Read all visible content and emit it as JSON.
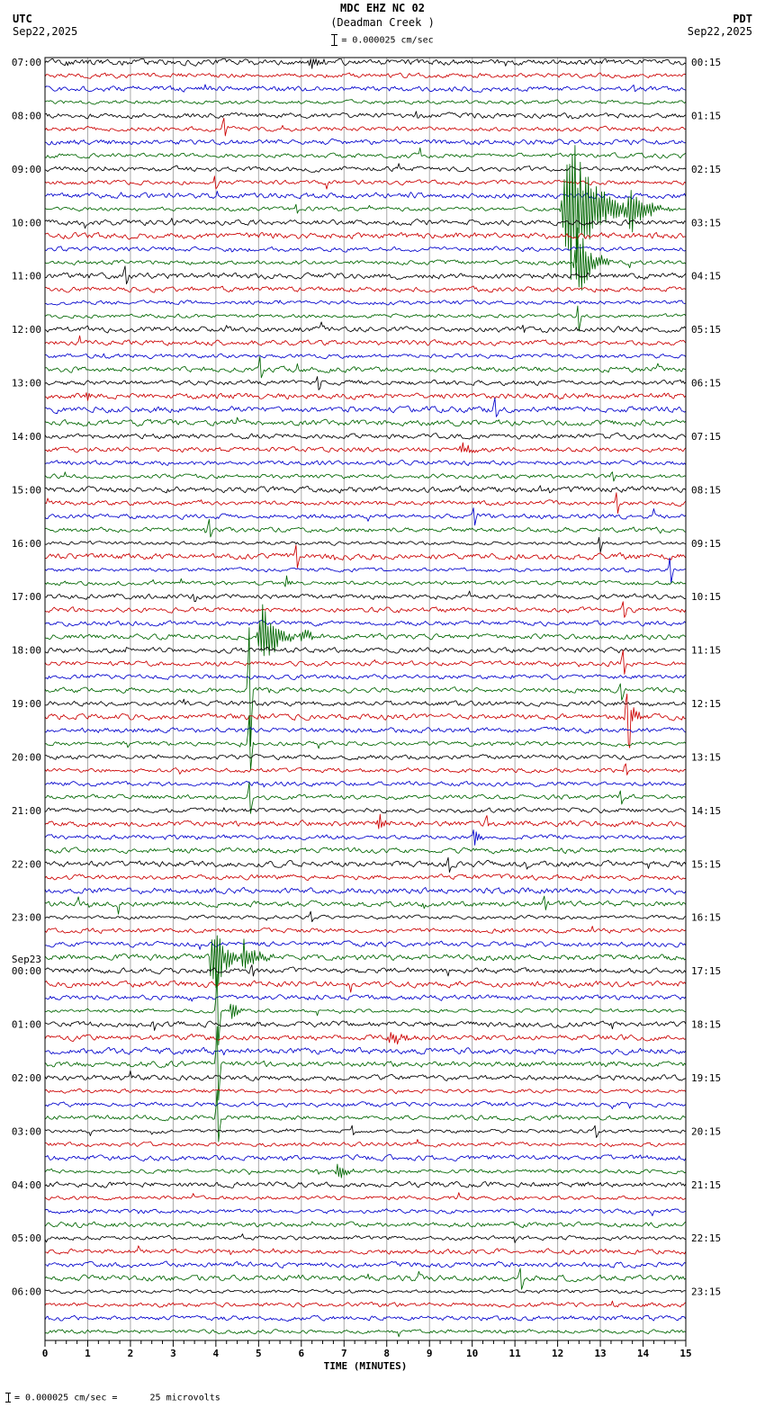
{
  "header": {
    "title": "MDC EHZ NC 02",
    "subtitle": "(Deadman Creek )",
    "scale_text": "= 0.000025 cm/sec",
    "left_tz": "UTC",
    "left_date": "Sep22,2025",
    "right_tz": "PDT",
    "right_date": "Sep22,2025"
  },
  "footer": {
    "note": "= 0.000025 cm/sec =      25 microvolts"
  },
  "chart_data": {
    "type": "line",
    "kind": "helicorder-seismogram",
    "station": "MDC EHZ NC 02",
    "station_name": "Deadman Creek",
    "xlabel": "TIME (MINUTES)",
    "x_min": 0,
    "x_max": 15,
    "x_major_tick_step": 1,
    "x_minor_tick_step": 0.25,
    "rows": 96,
    "minutes_per_row": 15,
    "trace_color_cycle": [
      "#000000",
      "#cc0000",
      "#0000cc",
      "#006600"
    ],
    "grid_color": "#aaaaaa",
    "x_tick_labels": [
      "0",
      "1",
      "2",
      "3",
      "4",
      "5",
      "6",
      "7",
      "8",
      "9",
      "10",
      "11",
      "12",
      "13",
      "14",
      "15"
    ],
    "left_time_labels": [
      {
        "row": 0,
        "text": "07:00"
      },
      {
        "row": 4,
        "text": "08:00"
      },
      {
        "row": 8,
        "text": "09:00"
      },
      {
        "row": 12,
        "text": "10:00"
      },
      {
        "row": 16,
        "text": "11:00"
      },
      {
        "row": 20,
        "text": "12:00"
      },
      {
        "row": 24,
        "text": "13:00"
      },
      {
        "row": 28,
        "text": "14:00"
      },
      {
        "row": 32,
        "text": "15:00"
      },
      {
        "row": 36,
        "text": "16:00"
      },
      {
        "row": 40,
        "text": "17:00"
      },
      {
        "row": 44,
        "text": "18:00"
      },
      {
        "row": 48,
        "text": "19:00"
      },
      {
        "row": 52,
        "text": "20:00"
      },
      {
        "row": 56,
        "text": "21:00"
      },
      {
        "row": 60,
        "text": "22:00"
      },
      {
        "row": 64,
        "text": "23:00"
      },
      {
        "row": 68,
        "text": "00:00",
        "date_above": "Sep23"
      },
      {
        "row": 72,
        "text": "01:00"
      },
      {
        "row": 76,
        "text": "02:00"
      },
      {
        "row": 80,
        "text": "03:00"
      },
      {
        "row": 84,
        "text": "04:00"
      },
      {
        "row": 88,
        "text": "05:00"
      },
      {
        "row": 92,
        "text": "06:00"
      }
    ],
    "right_time_labels": [
      {
        "row": 0,
        "text": "00:15"
      },
      {
        "row": 4,
        "text": "01:15"
      },
      {
        "row": 8,
        "text": "02:15"
      },
      {
        "row": 12,
        "text": "03:15"
      },
      {
        "row": 16,
        "text": "04:15"
      },
      {
        "row": 20,
        "text": "05:15"
      },
      {
        "row": 24,
        "text": "06:15"
      },
      {
        "row": 28,
        "text": "07:15"
      },
      {
        "row": 32,
        "text": "08:15"
      },
      {
        "row": 36,
        "text": "09:15"
      },
      {
        "row": 40,
        "text": "10:15"
      },
      {
        "row": 44,
        "text": "11:15"
      },
      {
        "row": 48,
        "text": "12:15"
      },
      {
        "row": 52,
        "text": "13:15"
      },
      {
        "row": 56,
        "text": "14:15"
      },
      {
        "row": 60,
        "text": "15:15"
      },
      {
        "row": 64,
        "text": "16:15"
      },
      {
        "row": 68,
        "text": "17:15"
      },
      {
        "row": 72,
        "text": "18:15"
      },
      {
        "row": 76,
        "text": "19:15"
      },
      {
        "row": 80,
        "text": "20:15"
      },
      {
        "row": 84,
        "text": "21:15"
      },
      {
        "row": 88,
        "text": "22:15"
      },
      {
        "row": 92,
        "text": "23:15"
      }
    ],
    "events": [
      {
        "row": 0,
        "t": 6.15,
        "kind": "burst",
        "amp": 14,
        "dur": 0.45
      },
      {
        "row": 2,
        "t": 13.8,
        "kind": "spike",
        "amp": 5
      },
      {
        "row": 4,
        "t": 8.7,
        "kind": "spike",
        "amp": 5
      },
      {
        "row": 5,
        "t": 4.2,
        "kind": "spike",
        "amp": 13
      },
      {
        "row": 9,
        "t": 4.0,
        "kind": "spike",
        "amp": 11
      },
      {
        "row": 11,
        "t": 5.9,
        "kind": "spike",
        "amp": 7
      },
      {
        "row": 11,
        "t": 12.05,
        "kind": "burst",
        "amp": 92,
        "dur": 1.7
      },
      {
        "row": 11,
        "t": 13.6,
        "kind": "burst",
        "amp": 26,
        "dur": 1.1
      },
      {
        "row": 12,
        "t": 3.0,
        "kind": "spike",
        "amp": 5
      },
      {
        "row": 15,
        "t": 12.35,
        "kind": "burst",
        "amp": 48,
        "dur": 0.9
      },
      {
        "row": 16,
        "t": 1.9,
        "kind": "spike",
        "amp": 16
      },
      {
        "row": 19,
        "t": 12.5,
        "kind": "spike",
        "amp": 20
      },
      {
        "row": 20,
        "t": 11.2,
        "kind": "spike",
        "amp": 8
      },
      {
        "row": 23,
        "t": 5.05,
        "kind": "spike",
        "amp": 18
      },
      {
        "row": 24,
        "t": 6.4,
        "kind": "spike",
        "amp": 12
      },
      {
        "row": 25,
        "t": 0.95,
        "kind": "burst",
        "amp": 8,
        "dur": 0.25
      },
      {
        "row": 26,
        "t": 10.55,
        "kind": "spike",
        "amp": 13
      },
      {
        "row": 29,
        "t": 9.7,
        "kind": "burst",
        "amp": 9,
        "dur": 0.5
      },
      {
        "row": 31,
        "t": 13.3,
        "kind": "spike",
        "amp": 8
      },
      {
        "row": 32,
        "t": 11.8,
        "kind": "spike",
        "amp": 6
      },
      {
        "row": 33,
        "t": 13.4,
        "kind": "spike",
        "amp": 16
      },
      {
        "row": 34,
        "t": 10.05,
        "kind": "spike",
        "amp": 16
      },
      {
        "row": 35,
        "t": 3.85,
        "kind": "spike",
        "amp": 16
      },
      {
        "row": 36,
        "t": 13.0,
        "kind": "spike",
        "amp": 13
      },
      {
        "row": 37,
        "t": 5.9,
        "kind": "spike",
        "amp": 19
      },
      {
        "row": 38,
        "t": 14.65,
        "kind": "spike",
        "amp": 22
      },
      {
        "row": 39,
        "t": 5.6,
        "kind": "burst",
        "amp": 10,
        "dur": 0.3
      },
      {
        "row": 40,
        "t": 3.5,
        "kind": "spike",
        "amp": 6
      },
      {
        "row": 41,
        "t": 13.55,
        "kind": "spike",
        "amp": 12
      },
      {
        "row": 43,
        "t": 4.95,
        "kind": "burst",
        "amp": 46,
        "dur": 0.9
      },
      {
        "row": 43,
        "t": 5.95,
        "kind": "burst",
        "amp": 14,
        "dur": 0.5
      },
      {
        "row": 45,
        "t": 13.55,
        "kind": "spike",
        "amp": 18
      },
      {
        "row": 47,
        "t": 4.8,
        "kind": "spike",
        "amp": 95
      },
      {
        "row": 47,
        "t": 13.5,
        "kind": "spike",
        "amp": 14
      },
      {
        "row": 49,
        "t": 13.55,
        "kind": "burst",
        "amp": 26,
        "dur": 0.55
      },
      {
        "row": 49,
        "t": 13.65,
        "kind": "spike",
        "amp": 58
      },
      {
        "row": 51,
        "t": 4.8,
        "kind": "spike",
        "amp": 46
      },
      {
        "row": 53,
        "t": 13.6,
        "kind": "spike",
        "amp": 10
      },
      {
        "row": 55,
        "t": 4.8,
        "kind": "spike",
        "amp": 24
      },
      {
        "row": 55,
        "t": 13.5,
        "kind": "spike",
        "amp": 12
      },
      {
        "row": 57,
        "t": 7.75,
        "kind": "burst",
        "amp": 15,
        "dur": 0.35
      },
      {
        "row": 57,
        "t": 10.35,
        "kind": "spike",
        "amp": 8
      },
      {
        "row": 58,
        "t": 10.0,
        "kind": "burst",
        "amp": 13,
        "dur": 0.4
      },
      {
        "row": 60,
        "t": 9.45,
        "kind": "spike",
        "amp": 13
      },
      {
        "row": 63,
        "t": 11.7,
        "kind": "spike",
        "amp": 9
      },
      {
        "row": 64,
        "t": 6.25,
        "kind": "spike",
        "amp": 9
      },
      {
        "row": 67,
        "t": 3.85,
        "kind": "burst",
        "amp": 62,
        "dur": 0.65
      },
      {
        "row": 67,
        "t": 4.55,
        "kind": "burst",
        "amp": 18,
        "dur": 0.9
      },
      {
        "row": 68,
        "t": 4.85,
        "kind": "spike",
        "amp": 8
      },
      {
        "row": 71,
        "t": 4.05,
        "kind": "spike",
        "amp": 56
      },
      {
        "row": 71,
        "t": 4.3,
        "kind": "burst",
        "amp": 16,
        "dur": 0.4
      },
      {
        "row": 72,
        "t": 2.55,
        "kind": "spike",
        "amp": 7
      },
      {
        "row": 73,
        "t": 8.0,
        "kind": "burst",
        "amp": 10,
        "dur": 0.7
      },
      {
        "row": 75,
        "t": 4.05,
        "kind": "spike",
        "amp": 60
      },
      {
        "row": 79,
        "t": 4.05,
        "kind": "spike",
        "amp": 42
      },
      {
        "row": 80,
        "t": 7.2,
        "kind": "spike",
        "amp": 7
      },
      {
        "row": 80,
        "t": 12.9,
        "kind": "spike",
        "amp": 9
      },
      {
        "row": 83,
        "t": 6.8,
        "kind": "burst",
        "amp": 13,
        "dur": 0.5
      },
      {
        "row": 88,
        "t": 11.0,
        "kind": "spike",
        "amp": 5
      },
      {
        "row": 91,
        "t": 11.15,
        "kind": "spike",
        "amp": 17
      }
    ]
  }
}
